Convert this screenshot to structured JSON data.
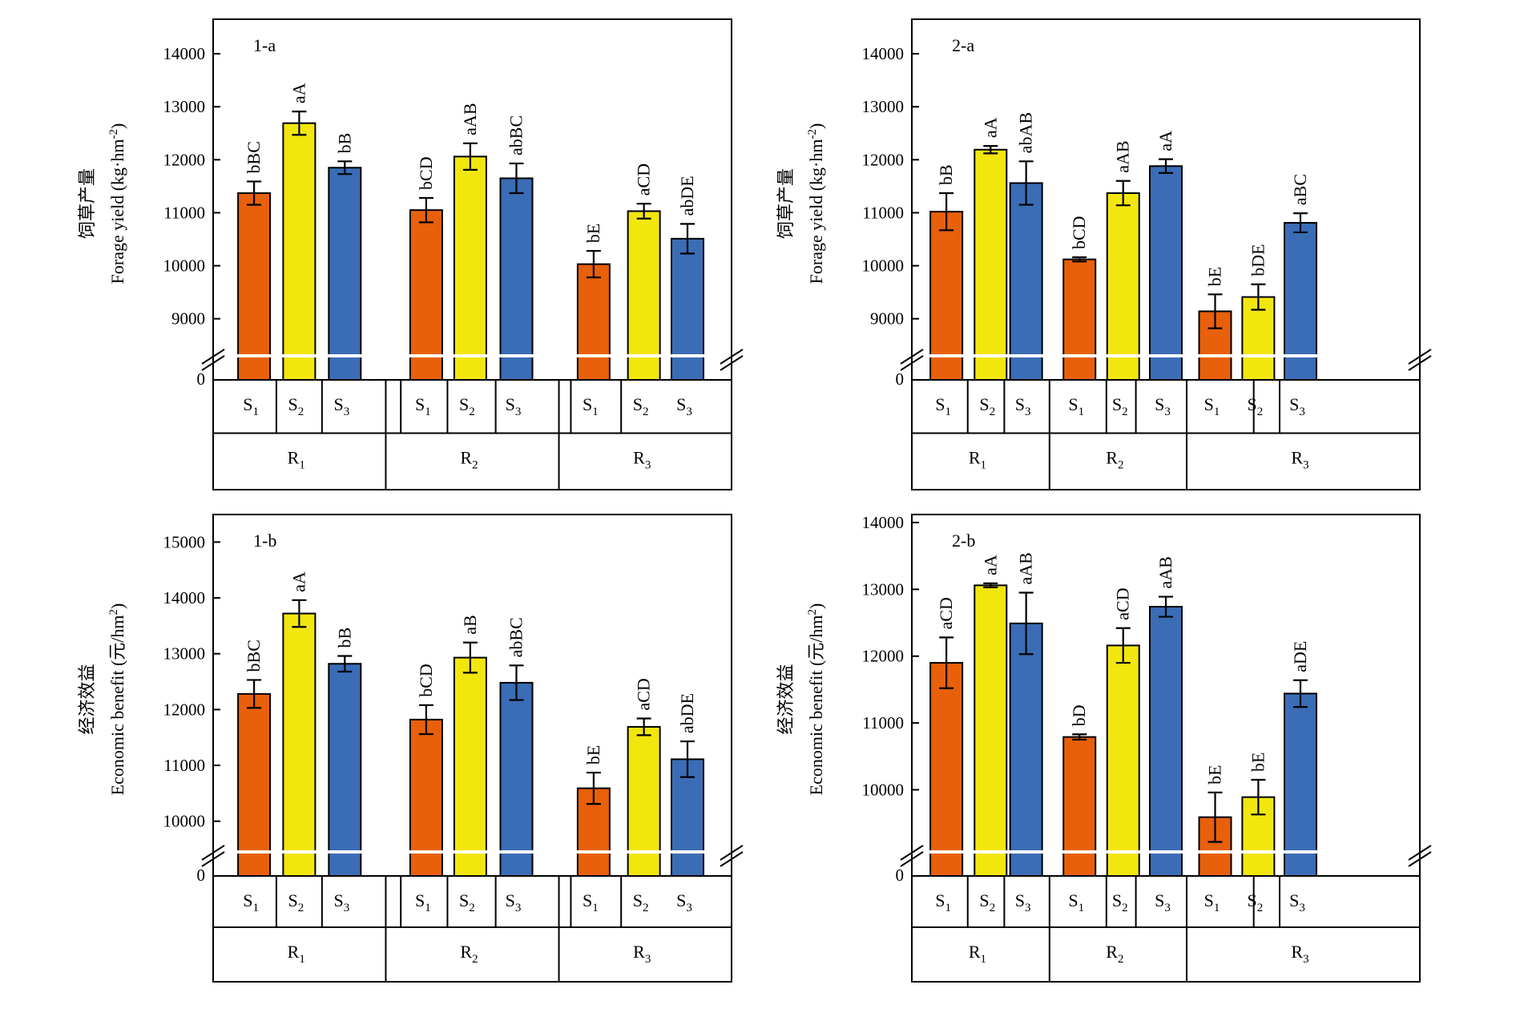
{
  "colors": {
    "S1": "#e8600a",
    "S2": "#f2e60f",
    "S3": "#3a6db6",
    "frame": "#000000",
    "break": "#ffffff"
  },
  "chart_data": [
    {
      "type": "bar",
      "panel_label": "1-a",
      "ylabel_cn": "饲草产量",
      "ylabel_en": "Forage yield (kg·hm",
      "ylabel_sup": "-2",
      "ylabel_end": ")",
      "yticks": [
        9000,
        10000,
        11000,
        12000,
        13000,
        14000
      ],
      "ylim": [
        8300,
        14500
      ],
      "zero_label": "0",
      "groups": [
        {
          "label": "R",
          "sub": "1",
          "bars": [
            {
              "label": "S",
              "sub": "1",
              "value": 11370,
              "error": 220,
              "sig": "bBC"
            },
            {
              "label": "S",
              "sub": "2",
              "value": 12690,
              "error": 220,
              "sig": "aA"
            },
            {
              "label": "S",
              "sub": "3",
              "value": 11850,
              "error": 120,
              "sig": "bB"
            }
          ]
        },
        {
          "label": "R",
          "sub": "2",
          "bars": [
            {
              "label": "S",
              "sub": "1",
              "value": 11050,
              "error": 230,
              "sig": "bCD"
            },
            {
              "label": "S",
              "sub": "2",
              "value": 12060,
              "error": 250,
              "sig": "aAB"
            },
            {
              "label": "S",
              "sub": "3",
              "value": 11650,
              "error": 280,
              "sig": "abBC"
            }
          ]
        },
        {
          "label": "R",
          "sub": "3",
          "bars": [
            {
              "label": "S",
              "sub": "1",
              "value": 10030,
              "error": 250,
              "sig": "bE"
            },
            {
              "label": "S",
              "sub": "2",
              "value": 11030,
              "error": 140,
              "sig": "aCD"
            },
            {
              "label": "S",
              "sub": "3",
              "value": 10510,
              "error": 280,
              "sig": "abDE"
            }
          ]
        }
      ]
    },
    {
      "type": "bar",
      "panel_label": "2-a",
      "ylabel_cn": "饲草产量",
      "ylabel_en": "Forage yield (kg·hm",
      "ylabel_sup": "-2",
      "ylabel_end": ")",
      "yticks": [
        9000,
        10000,
        11000,
        12000,
        13000,
        14000
      ],
      "ylim": [
        8300,
        14500
      ],
      "zero_label": "0",
      "groups": [
        {
          "label": "R",
          "sub": "1",
          "bars": [
            {
              "label": "S",
              "sub": "1",
              "value": 11020,
              "error": 350,
              "sig": "bB"
            },
            {
              "label": "S",
              "sub": "2",
              "value": 12190,
              "error": 70,
              "sig": "aA"
            },
            {
              "label": "S",
              "sub": "3",
              "value": 11560,
              "error": 410,
              "sig": "abAB"
            }
          ]
        },
        {
          "label": "R",
          "sub": "2",
          "bars": [
            {
              "label": "S",
              "sub": "1",
              "value": 10120,
              "error": 40,
              "sig": "bCD"
            },
            {
              "label": "S",
              "sub": "2",
              "value": 11370,
              "error": 230,
              "sig": "aAB"
            },
            {
              "label": "S",
              "sub": "3",
              "value": 11880,
              "error": 130,
              "sig": "aA"
            }
          ]
        },
        {
          "label": "R",
          "sub": "3",
          "bars": [
            {
              "label": "S",
              "sub": "1",
              "value": 9140,
              "error": 320,
              "sig": "bE"
            },
            {
              "label": "S",
              "sub": "2",
              "value": 9410,
              "error": 240,
              "sig": "bDE"
            },
            {
              "label": "S",
              "sub": "3",
              "value": 10810,
              "error": 180,
              "sig": "aBC"
            }
          ]
        }
      ]
    },
    {
      "type": "bar",
      "panel_label": "1-b",
      "ylabel_cn": "经济效益",
      "ylabel_en": "Economic benefit (元/hm",
      "ylabel_sup": "2",
      "ylabel_end": ")",
      "yticks": [
        10000,
        11000,
        12000,
        13000,
        14000,
        15000
      ],
      "ylim": [
        9450,
        15350
      ],
      "zero_label": "0",
      "groups": [
        {
          "label": "R",
          "sub": "1",
          "bars": [
            {
              "label": "S",
              "sub": "1",
              "value": 12280,
              "error": 250,
              "sig": "bBC"
            },
            {
              "label": "S",
              "sub": "2",
              "value": 13720,
              "error": 240,
              "sig": "aA"
            },
            {
              "label": "S",
              "sub": "3",
              "value": 12820,
              "error": 140,
              "sig": "bB"
            }
          ]
        },
        {
          "label": "R",
          "sub": "2",
          "bars": [
            {
              "label": "S",
              "sub": "1",
              "value": 11820,
              "error": 260,
              "sig": "bCD"
            },
            {
              "label": "S",
              "sub": "2",
              "value": 12930,
              "error": 270,
              "sig": "aB"
            },
            {
              "label": "S",
              "sub": "3",
              "value": 12480,
              "error": 310,
              "sig": "abBC"
            }
          ]
        },
        {
          "label": "R",
          "sub": "3",
          "bars": [
            {
              "label": "S",
              "sub": "1",
              "value": 10590,
              "error": 280,
              "sig": "bE"
            },
            {
              "label": "S",
              "sub": "2",
              "value": 11690,
              "error": 150,
              "sig": "aCD"
            },
            {
              "label": "S",
              "sub": "3",
              "value": 11110,
              "error": 320,
              "sig": "abDE"
            }
          ]
        }
      ]
    },
    {
      "type": "bar",
      "panel_label": "2-b",
      "ylabel_cn": "经济效益",
      "ylabel_en": "Economic benefit (元/hm",
      "ylabel_sup": "2",
      "ylabel_end": ")",
      "yticks": [
        10000,
        11000,
        12000,
        13000,
        14000
      ],
      "ylim": [
        9070,
        14000
      ],
      "zero_label": "0",
      "groups": [
        {
          "label": "R",
          "sub": "1",
          "bars": [
            {
              "label": "S",
              "sub": "1",
              "value": 11900,
              "error": 380,
              "sig": "aCD"
            },
            {
              "label": "S",
              "sub": "2",
              "value": 13060,
              "error": 30,
              "sig": "aA"
            },
            {
              "label": "S",
              "sub": "3",
              "value": 12490,
              "error": 460,
              "sig": "aAB"
            }
          ]
        },
        {
          "label": "R",
          "sub": "2",
          "bars": [
            {
              "label": "S",
              "sub": "1",
              "value": 10790,
              "error": 40,
              "sig": "bD"
            },
            {
              "label": "S",
              "sub": "2",
              "value": 12160,
              "error": 260,
              "sig": "aCD"
            },
            {
              "label": "S",
              "sub": "3",
              "value": 12740,
              "error": 150,
              "sig": "aAB"
            }
          ]
        },
        {
          "label": "R",
          "sub": "3",
          "bars": [
            {
              "label": "S",
              "sub": "1",
              "value": 9590,
              "error": 370,
              "sig": "bE"
            },
            {
              "label": "S",
              "sub": "2",
              "value": 9890,
              "error": 260,
              "sig": "bE"
            },
            {
              "label": "S",
              "sub": "3",
              "value": 11440,
              "error": 200,
              "sig": "aDE"
            }
          ]
        }
      ]
    }
  ]
}
